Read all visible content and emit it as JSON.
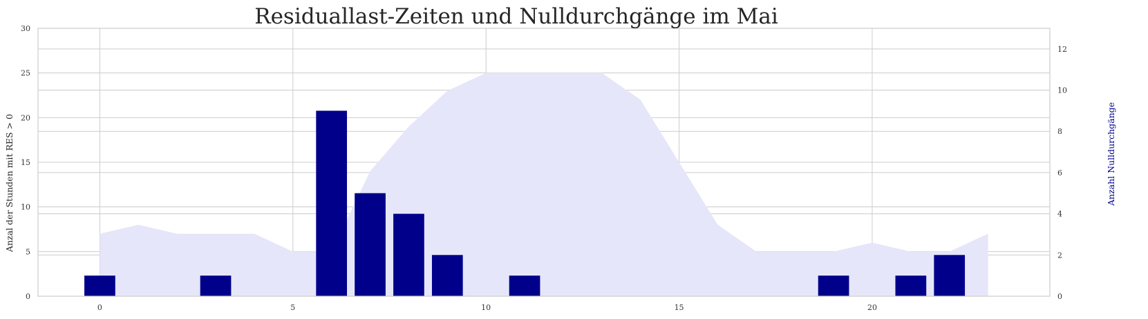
{
  "chart_data": {
    "type": "bar+area",
    "title": "Residuallast-Zeiten und Nulldurchgänge im Mai",
    "x": [
      0,
      1,
      2,
      3,
      4,
      5,
      6,
      7,
      8,
      9,
      10,
      11,
      12,
      13,
      14,
      15,
      16,
      17,
      18,
      19,
      20,
      21,
      22,
      23
    ],
    "xticks": [
      0,
      5,
      10,
      15,
      20
    ],
    "xlim": [
      -1.6,
      24.6
    ],
    "left_axis": {
      "label": "Anzal der Stunden mit RES > 0",
      "ylim": [
        0,
        30
      ],
      "ticks": [
        0,
        5,
        10,
        15,
        20,
        25,
        30
      ]
    },
    "right_axis": {
      "label": "Anzahl Nulldurchgänge",
      "ylim": [
        0,
        13
      ],
      "ticks": [
        0,
        2,
        4,
        6,
        8,
        10,
        12
      ],
      "label_color": "#00008b"
    },
    "series": [
      {
        "kind": "area",
        "axis": "left",
        "color": "#e6e6fa",
        "values": [
          7,
          8,
          7,
          7,
          7,
          5,
          5,
          14,
          19,
          23,
          25,
          25,
          25,
          25,
          22,
          15,
          8,
          5,
          5,
          5,
          6,
          5,
          5,
          7
        ]
      },
      {
        "kind": "bar",
        "axis": "right",
        "color": "#00008b",
        "values": [
          1,
          0,
          0,
          1,
          0,
          0,
          9,
          5,
          4,
          2,
          0,
          1,
          0,
          0,
          0,
          0,
          0,
          0,
          0,
          1,
          0,
          1,
          2,
          0
        ]
      }
    ],
    "grid": true,
    "legend": "none"
  }
}
